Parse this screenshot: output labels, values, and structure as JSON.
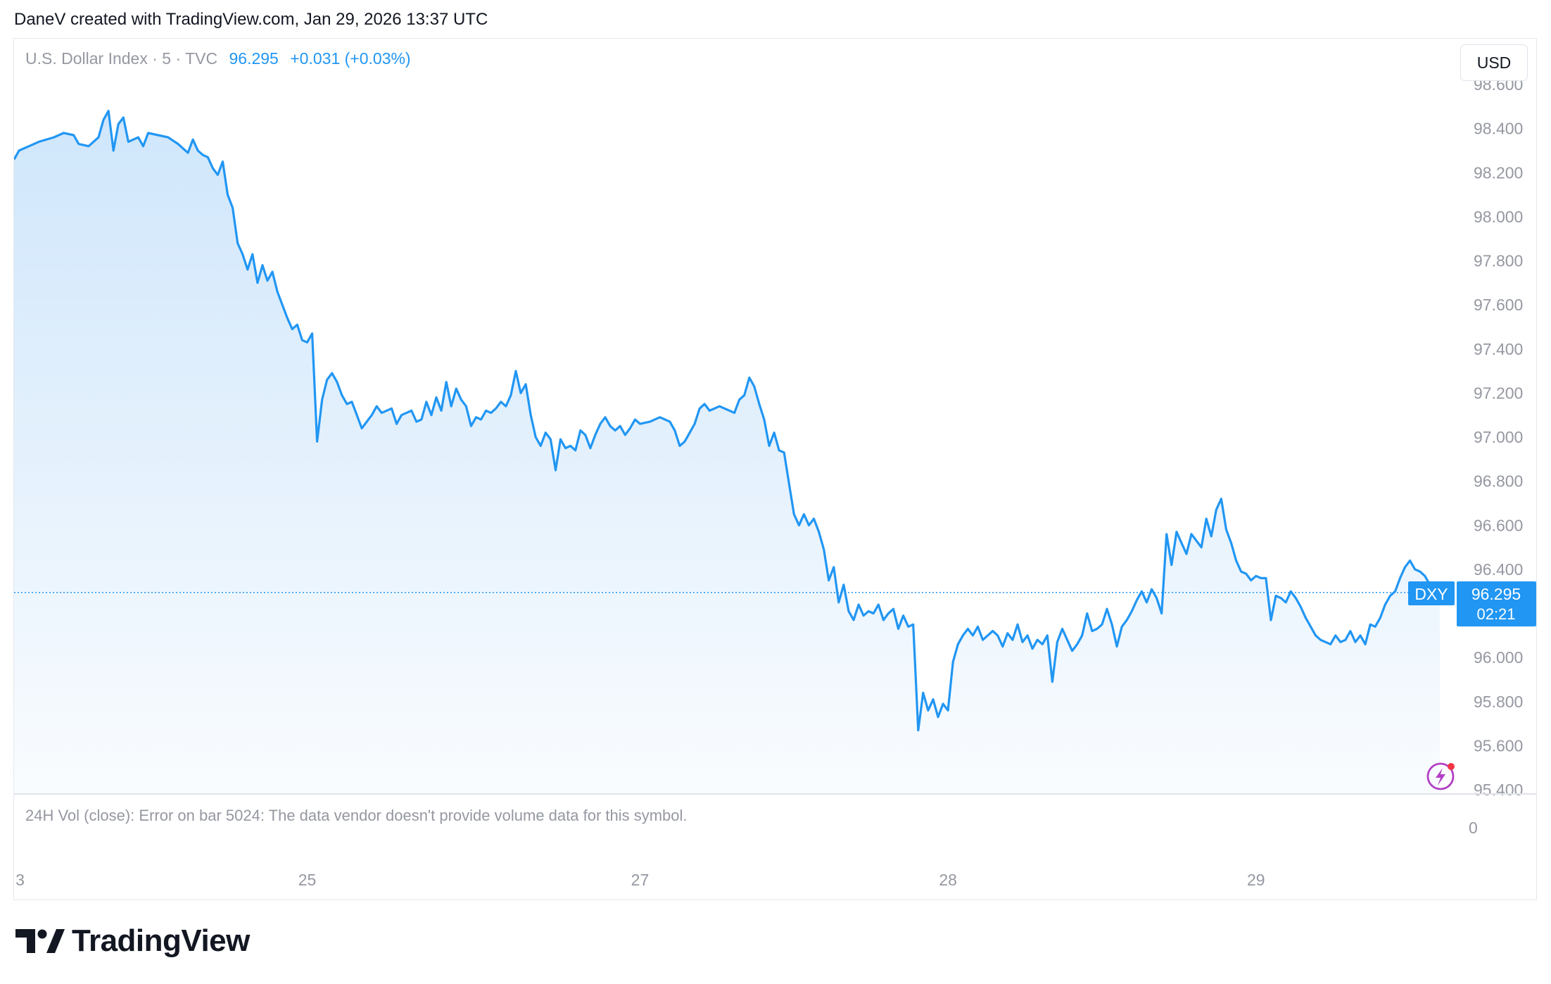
{
  "header": {
    "credit": "DaneV created with TradingView.com, Jan 29, 2026 13:37 UTC"
  },
  "legend": {
    "symbol": "U.S. Dollar Index · 5 · TVC",
    "price": "96.295",
    "change": "+0.031 (+0.03%)"
  },
  "toolbar": {
    "currency": "USD"
  },
  "price_tag": {
    "ticker": "DXY",
    "price": "96.295",
    "countdown": "02:21"
  },
  "volume_pane": {
    "message": "24H Vol (close): Error on bar 5024: The data vendor doesn't provide volume data for this symbol.",
    "zero_label": "0"
  },
  "brand": {
    "name": "TradingView"
  },
  "colors": {
    "line": "#2196f3",
    "area_top": "#cfe6fb",
    "grid": "#e6e8ee",
    "axis_text": "#9598a1",
    "tag": "#2196f3"
  },
  "chart_data": {
    "type": "area",
    "ylim": [
      95.4,
      98.6
    ],
    "y_ticks": [
      "98.600",
      "98.400",
      "98.200",
      "98.000",
      "97.800",
      "97.600",
      "97.400",
      "97.200",
      "97.000",
      "96.800",
      "96.600",
      "96.400",
      "96.200",
      "96.000",
      "95.800",
      "95.600",
      "95.400"
    ],
    "x_tick_labels": [
      {
        "label": "3",
        "t": 0.3
      },
      {
        "label": "25",
        "t": 59
      },
      {
        "label": "27",
        "t": 126
      },
      {
        "label": "28",
        "t": 188
      },
      {
        "label": "29",
        "t": 250
      }
    ],
    "last_price": 96.295,
    "series": [
      {
        "points": [
          [
            0,
            98.26
          ],
          [
            1,
            98.3
          ],
          [
            3,
            98.32
          ],
          [
            5,
            98.34
          ],
          [
            8,
            98.36
          ],
          [
            10,
            98.38
          ],
          [
            12,
            98.37
          ],
          [
            13,
            98.33
          ],
          [
            15,
            98.32
          ],
          [
            17,
            98.36
          ],
          [
            18,
            98.44
          ],
          [
            19,
            98.48
          ],
          [
            20,
            98.3
          ],
          [
            21,
            98.42
          ],
          [
            22,
            98.45
          ],
          [
            23,
            98.34
          ],
          [
            25,
            98.36
          ],
          [
            26,
            98.32
          ],
          [
            27,
            98.38
          ],
          [
            29,
            98.37
          ],
          [
            31,
            98.36
          ],
          [
            33,
            98.33
          ],
          [
            34,
            98.31
          ],
          [
            35,
            98.29
          ],
          [
            36,
            98.35
          ],
          [
            37,
            98.3
          ],
          [
            38,
            98.28
          ],
          [
            39,
            98.27
          ],
          [
            40,
            98.22
          ],
          [
            41,
            98.19
          ],
          [
            42,
            98.25
          ],
          [
            43,
            98.1
          ],
          [
            44,
            98.04
          ],
          [
            45,
            97.88
          ],
          [
            46,
            97.83
          ],
          [
            47,
            97.76
          ],
          [
            48,
            97.83
          ],
          [
            49,
            97.7
          ],
          [
            50,
            97.78
          ],
          [
            51,
            97.71
          ],
          [
            52,
            97.75
          ],
          [
            53,
            97.66
          ],
          [
            54,
            97.6
          ],
          [
            55,
            97.54
          ],
          [
            56,
            97.49
          ],
          [
            57,
            97.51
          ],
          [
            58,
            97.44
          ],
          [
            59,
            97.43
          ],
          [
            60,
            97.47
          ],
          [
            61,
            96.98
          ],
          [
            62,
            97.17
          ],
          [
            63,
            97.26
          ],
          [
            64,
            97.29
          ],
          [
            65,
            97.25
          ],
          [
            66,
            97.19
          ],
          [
            67,
            97.15
          ],
          [
            68,
            97.16
          ],
          [
            69,
            97.1
          ],
          [
            70,
            97.04
          ],
          [
            71,
            97.07
          ],
          [
            72,
            97.1
          ],
          [
            73,
            97.14
          ],
          [
            74,
            97.11
          ],
          [
            76,
            97.13
          ],
          [
            77,
            97.06
          ],
          [
            78,
            97.1
          ],
          [
            80,
            97.12
          ],
          [
            81,
            97.07
          ],
          [
            82,
            97.08
          ],
          [
            83,
            97.16
          ],
          [
            84,
            97.1
          ],
          [
            85,
            97.18
          ],
          [
            86,
            97.12
          ],
          [
            87,
            97.25
          ],
          [
            88,
            97.14
          ],
          [
            89,
            97.22
          ],
          [
            90,
            97.17
          ],
          [
            91,
            97.14
          ],
          [
            92,
            97.05
          ],
          [
            93,
            97.09
          ],
          [
            94,
            97.08
          ],
          [
            95,
            97.12
          ],
          [
            96,
            97.11
          ],
          [
            97,
            97.13
          ],
          [
            98,
            97.16
          ],
          [
            99,
            97.14
          ],
          [
            100,
            97.19
          ],
          [
            101,
            97.3
          ],
          [
            102,
            97.2
          ],
          [
            103,
            97.24
          ],
          [
            104,
            97.1
          ],
          [
            105,
            97.0
          ],
          [
            106,
            96.96
          ],
          [
            107,
            97.02
          ],
          [
            108,
            96.99
          ],
          [
            109,
            96.85
          ],
          [
            110,
            96.99
          ],
          [
            111,
            96.95
          ],
          [
            112,
            96.96
          ],
          [
            113,
            96.94
          ],
          [
            114,
            97.03
          ],
          [
            115,
            97.01
          ],
          [
            116,
            96.95
          ],
          [
            117,
            97.01
          ],
          [
            118,
            97.06
          ],
          [
            119,
            97.09
          ],
          [
            120,
            97.05
          ],
          [
            121,
            97.03
          ],
          [
            122,
            97.05
          ],
          [
            123,
            97.01
          ],
          [
            124,
            97.04
          ],
          [
            125,
            97.08
          ],
          [
            126,
            97.06
          ],
          [
            128,
            97.07
          ],
          [
            130,
            97.09
          ],
          [
            132,
            97.07
          ],
          [
            133,
            97.03
          ],
          [
            134,
            96.96
          ],
          [
            135,
            96.98
          ],
          [
            136,
            97.02
          ],
          [
            137,
            97.06
          ],
          [
            138,
            97.13
          ],
          [
            139,
            97.15
          ],
          [
            140,
            97.12
          ],
          [
            142,
            97.14
          ],
          [
            144,
            97.12
          ],
          [
            145,
            97.11
          ],
          [
            146,
            97.17
          ],
          [
            147,
            97.19
          ],
          [
            148,
            97.27
          ],
          [
            149,
            97.23
          ],
          [
            150,
            97.15
          ],
          [
            151,
            97.08
          ],
          [
            152,
            96.96
          ],
          [
            153,
            97.02
          ],
          [
            154,
            96.94
          ],
          [
            155,
            96.93
          ],
          [
            156,
            96.79
          ],
          [
            157,
            96.65
          ],
          [
            158,
            96.6
          ],
          [
            159,
            96.65
          ],
          [
            160,
            96.6
          ],
          [
            161,
            96.63
          ],
          [
            162,
            96.57
          ],
          [
            163,
            96.49
          ],
          [
            164,
            96.35
          ],
          [
            165,
            96.41
          ],
          [
            166,
            96.25
          ],
          [
            167,
            96.33
          ],
          [
            168,
            96.21
          ],
          [
            169,
            96.17
          ],
          [
            170,
            96.24
          ],
          [
            171,
            96.19
          ],
          [
            172,
            96.21
          ],
          [
            173,
            96.2
          ],
          [
            174,
            96.24
          ],
          [
            175,
            96.17
          ],
          [
            176,
            96.2
          ],
          [
            177,
            96.22
          ],
          [
            178,
            96.13
          ],
          [
            179,
            96.19
          ],
          [
            180,
            96.14
          ],
          [
            181,
            96.15
          ],
          [
            182,
            95.67
          ],
          [
            183,
            95.84
          ],
          [
            184,
            95.76
          ],
          [
            185,
            95.81
          ],
          [
            186,
            95.73
          ],
          [
            187,
            95.79
          ],
          [
            188,
            95.76
          ],
          [
            189,
            95.98
          ],
          [
            190,
            96.06
          ],
          [
            191,
            96.1
          ],
          [
            192,
            96.13
          ],
          [
            193,
            96.1
          ],
          [
            194,
            96.14
          ],
          [
            195,
            96.08
          ],
          [
            196,
            96.1
          ],
          [
            197,
            96.12
          ],
          [
            198,
            96.1
          ],
          [
            199,
            96.05
          ],
          [
            200,
            96.11
          ],
          [
            201,
            96.08
          ],
          [
            202,
            96.15
          ],
          [
            203,
            96.07
          ],
          [
            204,
            96.1
          ],
          [
            205,
            96.04
          ],
          [
            206,
            96.08
          ],
          [
            207,
            96.06
          ],
          [
            208,
            96.1
          ],
          [
            209,
            95.89
          ],
          [
            210,
            96.07
          ],
          [
            211,
            96.13
          ],
          [
            212,
            96.08
          ],
          [
            213,
            96.03
          ],
          [
            214,
            96.06
          ],
          [
            215,
            96.1
          ],
          [
            216,
            96.2
          ],
          [
            217,
            96.12
          ],
          [
            218,
            96.13
          ],
          [
            219,
            96.15
          ],
          [
            220,
            96.22
          ],
          [
            221,
            96.15
          ],
          [
            222,
            96.05
          ],
          [
            223,
            96.14
          ],
          [
            224,
            96.17
          ],
          [
            225,
            96.21
          ],
          [
            226,
            96.26
          ],
          [
            227,
            96.3
          ],
          [
            228,
            96.25
          ],
          [
            229,
            96.31
          ],
          [
            230,
            96.27
          ],
          [
            231,
            96.2
          ],
          [
            232,
            96.56
          ],
          [
            233,
            96.42
          ],
          [
            234,
            96.57
          ],
          [
            235,
            96.52
          ],
          [
            236,
            96.47
          ],
          [
            237,
            96.56
          ],
          [
            238,
            96.53
          ],
          [
            239,
            96.5
          ],
          [
            240,
            96.63
          ],
          [
            241,
            96.55
          ],
          [
            242,
            96.67
          ],
          [
            243,
            96.72
          ],
          [
            244,
            96.58
          ],
          [
            245,
            96.52
          ],
          [
            246,
            96.44
          ],
          [
            247,
            96.39
          ],
          [
            248,
            96.38
          ],
          [
            249,
            96.35
          ],
          [
            250,
            96.37
          ],
          [
            251,
            96.36
          ],
          [
            252,
            96.36
          ],
          [
            253,
            96.17
          ],
          [
            254,
            96.28
          ],
          [
            255,
            96.27
          ],
          [
            256,
            96.25
          ],
          [
            257,
            96.3
          ],
          [
            258,
            96.27
          ],
          [
            259,
            96.23
          ],
          [
            260,
            96.18
          ],
          [
            261,
            96.14
          ],
          [
            262,
            96.1
          ],
          [
            263,
            96.08
          ],
          [
            264,
            96.07
          ],
          [
            265,
            96.06
          ],
          [
            266,
            96.1
          ],
          [
            267,
            96.07
          ],
          [
            268,
            96.08
          ],
          [
            269,
            96.12
          ],
          [
            270,
            96.07
          ],
          [
            271,
            96.1
          ],
          [
            272,
            96.06
          ],
          [
            273,
            96.15
          ],
          [
            274,
            96.14
          ],
          [
            275,
            96.18
          ],
          [
            276,
            96.24
          ],
          [
            277,
            96.28
          ],
          [
            278,
            96.3
          ],
          [
            279,
            96.36
          ],
          [
            280,
            96.41
          ],
          [
            281,
            96.44
          ],
          [
            282,
            96.4
          ],
          [
            283,
            96.39
          ],
          [
            284,
            96.37
          ],
          [
            285,
            96.33
          ],
          [
            286,
            96.3
          ],
          [
            287,
            96.28
          ]
        ]
      }
    ]
  }
}
